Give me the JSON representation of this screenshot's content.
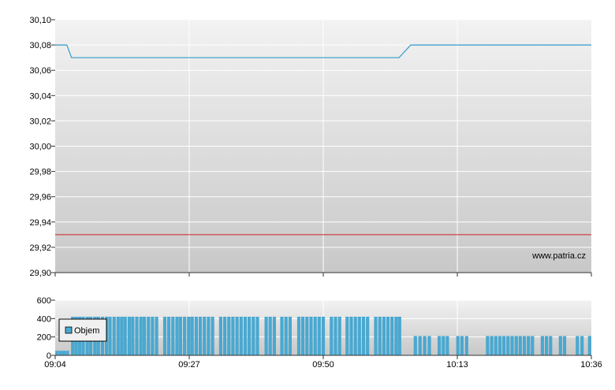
{
  "watermark": "www.patria.cz",
  "colors": {
    "price_line": "#3399cc",
    "reference_line": "#cc2222",
    "volume_bar": "#4aa8d0",
    "grid": "#ffffff",
    "axis": "#333333",
    "bg_top": "#f2f2f2",
    "bg_bottom": "#c8c8c8"
  },
  "chart_data": [
    {
      "type": "line",
      "x_ticks": [
        "09:04",
        "09:27",
        "09:50",
        "10:13",
        "10:36"
      ],
      "xlim": [
        0,
        92
      ],
      "ylim": [
        29.9,
        30.1
      ],
      "y_ticks": [
        "29,90",
        "29,92",
        "29,94",
        "29,96",
        "29,98",
        "30,00",
        "30,02",
        "30,04",
        "30,06",
        "30,08",
        "30,10"
      ],
      "y_tick_values": [
        29.9,
        29.92,
        29.94,
        29.96,
        29.98,
        30.0,
        30.02,
        30.04,
        30.06,
        30.08,
        30.1
      ],
      "grid": true,
      "series": [
        {
          "x": [
            0,
            2,
            2.8,
            59,
            61,
            92
          ],
          "y": [
            30.08,
            30.08,
            30.07,
            30.07,
            30.08,
            30.08
          ]
        }
      ],
      "reference_line": 29.93
    },
    {
      "type": "bar",
      "x_ticks": [
        "09:04",
        "09:27",
        "09:50",
        "10:13",
        "10:36"
      ],
      "xlim": [
        0,
        92
      ],
      "ylim": [
        0,
        600
      ],
      "y_ticks": [
        "0",
        "200",
        "400",
        "600"
      ],
      "y_tick_values": [
        0,
        200,
        400,
        600
      ],
      "grid": true,
      "legend": {
        "entries": [
          "Objem"
        ],
        "placement": "top-left"
      },
      "series": [
        {
          "name": "Objem",
          "x": [
            0.3,
            0.9,
            1.5,
            2.1,
            3.0,
            3.6,
            4.2,
            4.8,
            5.5,
            6.1,
            6.8,
            7.4,
            8.1,
            8.8,
            9.4,
            10.1,
            10.8,
            11.4,
            12.0,
            12.7,
            13.3,
            14.0,
            14.7,
            15.3,
            16.0,
            16.7,
            17.4,
            18.8,
            19.5,
            20.2,
            20.9,
            21.5,
            22.2,
            22.9,
            23.5,
            24.2,
            24.9,
            25.6,
            26.3,
            27.0,
            28.4,
            29.1,
            29.8,
            30.5,
            31.2,
            31.9,
            32.6,
            33.3,
            34.0,
            34.7,
            36.2,
            36.9,
            37.6,
            38.9,
            39.6,
            40.3,
            41.8,
            42.5,
            43.2,
            43.9,
            44.6,
            45.3,
            46.0,
            47.4,
            48.1,
            48.8,
            50.1,
            50.8,
            51.5,
            52.2,
            52.9,
            53.6,
            55.0,
            55.7,
            56.4,
            57.1,
            57.8,
            58.5,
            59.1,
            61.8,
            62.6,
            63.4,
            64.2,
            65.9,
            66.6,
            67.3,
            69.1,
            69.8,
            70.6,
            74.2,
            74.9,
            75.6,
            76.3,
            77.0,
            77.7,
            78.4,
            79.1,
            79.8,
            80.5,
            81.2,
            81.9,
            83.6,
            84.3,
            85.0,
            86.7,
            87.4,
            89.6,
            90.4,
            91.7
          ],
          "values": [
            50,
            50,
            50,
            50,
            420,
            420,
            420,
            420,
            420,
            420,
            420,
            420,
            420,
            420,
            420,
            420,
            420,
            420,
            420,
            420,
            420,
            420,
            420,
            420,
            420,
            420,
            420,
            420,
            420,
            420,
            420,
            420,
            420,
            420,
            420,
            420,
            420,
            420,
            420,
            420,
            420,
            420,
            420,
            420,
            420,
            420,
            420,
            420,
            420,
            420,
            420,
            420,
            420,
            420,
            420,
            420,
            420,
            420,
            420,
            420,
            420,
            420,
            420,
            420,
            420,
            420,
            420,
            420,
            420,
            420,
            420,
            420,
            420,
            420,
            420,
            420,
            420,
            420,
            420,
            210,
            210,
            210,
            210,
            210,
            210,
            210,
            210,
            210,
            210,
            210,
            210,
            210,
            210,
            210,
            210,
            210,
            210,
            210,
            210,
            210,
            210,
            210,
            210,
            210,
            210,
            210,
            210,
            210,
            210
          ]
        }
      ]
    }
  ]
}
